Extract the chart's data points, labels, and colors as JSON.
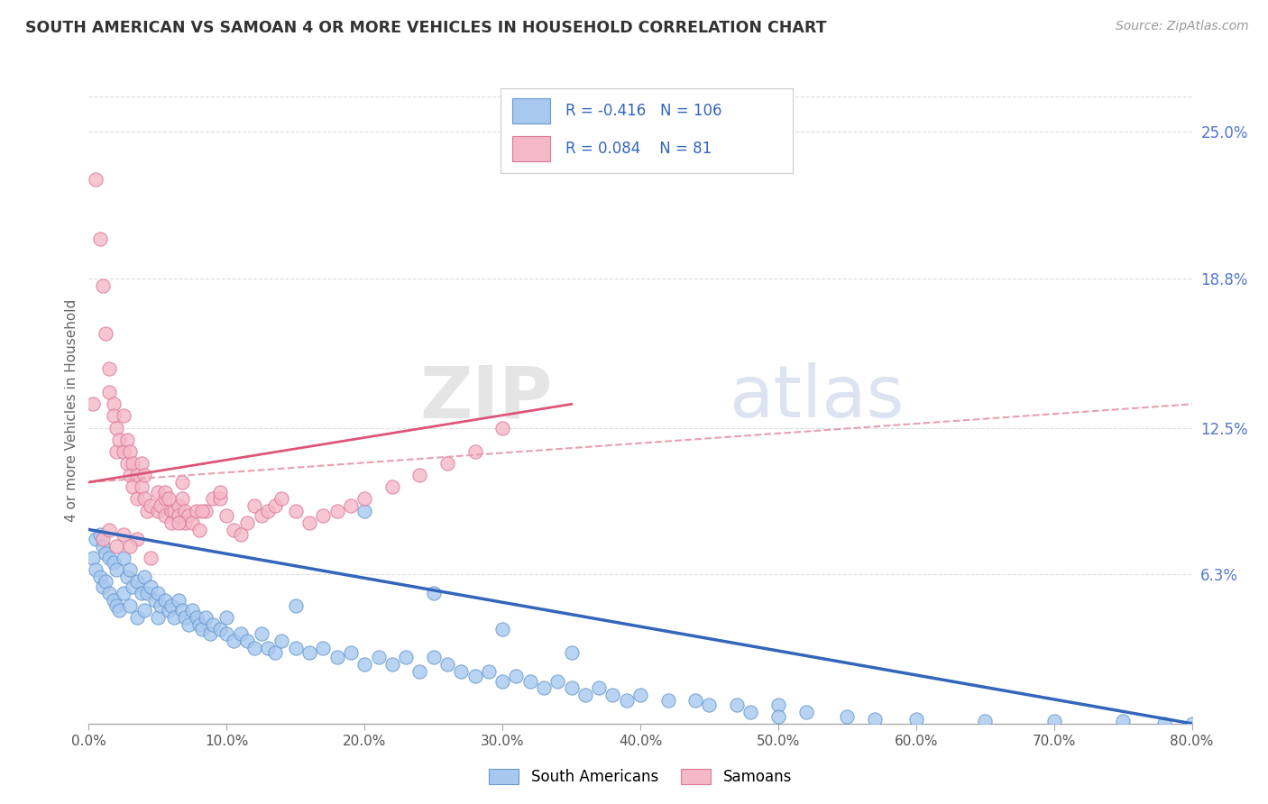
{
  "title": "SOUTH AMERICAN VS SAMOAN 4 OR MORE VEHICLES IN HOUSEHOLD CORRELATION CHART",
  "source": "Source: ZipAtlas.com",
  "ylabel": "4 or more Vehicles in Household",
  "watermark": "ZIPatlas",
  "legend_blue_r": "-0.416",
  "legend_blue_n": "106",
  "legend_pink_r": "0.084",
  "legend_pink_n": "81",
  "legend_label_blue": "South Americans",
  "legend_label_pink": "Samoans",
  "xlim": [
    0.0,
    80.0
  ],
  "ylim": [
    0.0,
    26.5
  ],
  "x_ticks": [
    0.0,
    10.0,
    20.0,
    30.0,
    40.0,
    50.0,
    60.0,
    70.0,
    80.0
  ],
  "y_ticks_right": [
    6.3,
    12.5,
    18.8,
    25.0
  ],
  "blue_color": "#a8c8f0",
  "pink_color": "#f4b8c8",
  "blue_edge_color": "#6699cc",
  "pink_edge_color": "#dd7799",
  "blue_line_color": "#3366bb",
  "pink_line_color": "#dd5577",
  "pink_dash_color": "#e8a0b0",
  "title_color": "#333333",
  "axis_label_color": "#666666",
  "right_tick_color": "#5577cc",
  "grid_color": "#dddddd",
  "background_color": "#ffffff",
  "blue_scatter_x": [
    0.3,
    0.5,
    0.5,
    0.8,
    0.8,
    1.0,
    1.0,
    1.2,
    1.2,
    1.5,
    1.5,
    1.8,
    1.8,
    2.0,
    2.0,
    2.2,
    2.5,
    2.5,
    2.8,
    3.0,
    3.0,
    3.2,
    3.5,
    3.5,
    3.8,
    4.0,
    4.0,
    4.2,
    4.5,
    4.8,
    5.0,
    5.0,
    5.2,
    5.5,
    5.8,
    6.0,
    6.2,
    6.5,
    6.8,
    7.0,
    7.2,
    7.5,
    7.8,
    8.0,
    8.2,
    8.5,
    8.8,
    9.0,
    9.5,
    10.0,
    10.5,
    11.0,
    11.5,
    12.0,
    12.5,
    13.0,
    13.5,
    14.0,
    15.0,
    16.0,
    17.0,
    18.0,
    19.0,
    20.0,
    21.0,
    22.0,
    23.0,
    24.0,
    25.0,
    26.0,
    27.0,
    28.0,
    29.0,
    30.0,
    31.0,
    32.0,
    33.0,
    34.0,
    35.0,
    36.0,
    37.0,
    38.0,
    39.0,
    40.0,
    42.0,
    44.0,
    45.0,
    47.0,
    48.0,
    50.0,
    50.0,
    52.0,
    55.0,
    57.0,
    60.0,
    65.0,
    70.0,
    75.0,
    78.0,
    80.0,
    10.0,
    15.0,
    20.0,
    25.0,
    30.0,
    35.0
  ],
  "blue_scatter_y": [
    7.0,
    7.8,
    6.5,
    8.0,
    6.2,
    7.5,
    5.8,
    7.2,
    6.0,
    7.0,
    5.5,
    6.8,
    5.2,
    6.5,
    5.0,
    4.8,
    7.0,
    5.5,
    6.2,
    6.5,
    5.0,
    5.8,
    6.0,
    4.5,
    5.5,
    6.2,
    4.8,
    5.5,
    5.8,
    5.2,
    5.5,
    4.5,
    5.0,
    5.2,
    4.8,
    5.0,
    4.5,
    5.2,
    4.8,
    4.5,
    4.2,
    4.8,
    4.5,
    4.2,
    4.0,
    4.5,
    3.8,
    4.2,
    4.0,
    3.8,
    3.5,
    3.8,
    3.5,
    3.2,
    3.8,
    3.2,
    3.0,
    3.5,
    3.2,
    3.0,
    3.2,
    2.8,
    3.0,
    2.5,
    2.8,
    2.5,
    2.8,
    2.2,
    2.8,
    2.5,
    2.2,
    2.0,
    2.2,
    1.8,
    2.0,
    1.8,
    1.5,
    1.8,
    1.5,
    1.2,
    1.5,
    1.2,
    1.0,
    1.2,
    1.0,
    1.0,
    0.8,
    0.8,
    0.5,
    0.8,
    0.3,
    0.5,
    0.3,
    0.2,
    0.2,
    0.1,
    0.1,
    0.1,
    0.0,
    0.0,
    4.5,
    5.0,
    9.0,
    5.5,
    4.0,
    3.0
  ],
  "pink_scatter_x": [
    0.3,
    0.5,
    0.8,
    1.0,
    1.2,
    1.5,
    1.5,
    1.8,
    1.8,
    2.0,
    2.0,
    2.2,
    2.5,
    2.5,
    2.8,
    2.8,
    3.0,
    3.0,
    3.2,
    3.2,
    3.5,
    3.5,
    3.8,
    3.8,
    4.0,
    4.0,
    4.2,
    4.5,
    5.0,
    5.0,
    5.2,
    5.5,
    5.5,
    6.0,
    6.0,
    6.2,
    6.5,
    6.5,
    6.8,
    7.0,
    7.0,
    7.2,
    7.5,
    7.8,
    8.0,
    8.5,
    9.0,
    9.5,
    10.0,
    10.5,
    11.0,
    11.5,
    12.0,
    12.5,
    13.0,
    13.5,
    14.0,
    15.0,
    16.0,
    17.0,
    18.0,
    19.0,
    20.0,
    22.0,
    24.0,
    26.0,
    28.0,
    30.0,
    5.5,
    6.8,
    8.2,
    9.5,
    1.0,
    2.0,
    3.5,
    4.5,
    1.5,
    2.5,
    3.0,
    5.8,
    6.5
  ],
  "pink_scatter_y": [
    13.5,
    23.0,
    20.5,
    18.5,
    16.5,
    15.0,
    14.0,
    13.5,
    13.0,
    12.5,
    11.5,
    12.0,
    11.5,
    13.0,
    11.0,
    12.0,
    11.5,
    10.5,
    11.0,
    10.0,
    10.5,
    9.5,
    10.0,
    11.0,
    9.5,
    10.5,
    9.0,
    9.2,
    9.8,
    9.0,
    9.2,
    9.5,
    8.8,
    9.0,
    8.5,
    9.0,
    9.2,
    8.8,
    9.5,
    9.0,
    8.5,
    8.8,
    8.5,
    9.0,
    8.2,
    9.0,
    9.5,
    9.5,
    8.8,
    8.2,
    8.0,
    8.5,
    9.2,
    8.8,
    9.0,
    9.2,
    9.5,
    9.0,
    8.5,
    8.8,
    9.0,
    9.2,
    9.5,
    10.0,
    10.5,
    11.0,
    11.5,
    12.5,
    9.8,
    10.2,
    9.0,
    9.8,
    7.8,
    7.5,
    7.8,
    7.0,
    8.2,
    8.0,
    7.5,
    9.5,
    8.5
  ],
  "blue_trend_x": [
    0.0,
    80.0
  ],
  "blue_trend_y_start": 8.2,
  "blue_trend_y_end": 0.0,
  "pink_trend_x": [
    0.0,
    35.0
  ],
  "pink_trend_y_start": 10.2,
  "pink_trend_y_end": 13.5,
  "pink_dash_trend_x": [
    0.0,
    80.0
  ],
  "pink_dash_trend_y_start": 10.2,
  "pink_dash_trend_y_end": 13.5
}
